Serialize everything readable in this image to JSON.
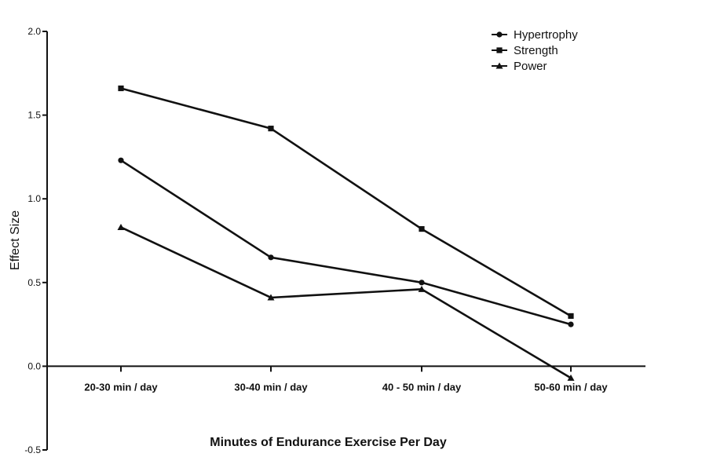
{
  "chart_data": {
    "type": "line",
    "title": "",
    "xlabel": "Minutes of Endurance Exercise Per Day",
    "ylabel": "Effect Size",
    "categories": [
      "20-30 min / day",
      "30-40 min / day",
      "40 - 50 min / day",
      "50-60 min / day"
    ],
    "ylim": [
      -0.5,
      2.0
    ],
    "yticks": [
      "-0.5",
      "0.0",
      "0.5",
      "1.0",
      "1.5",
      "2.0"
    ],
    "grid": false,
    "legend_position": "top-right",
    "series": [
      {
        "name": "Hypertrophy",
        "marker": "circle",
        "values": [
          1.23,
          0.65,
          0.5,
          0.25
        ]
      },
      {
        "name": "Strength",
        "marker": "square",
        "values": [
          1.66,
          1.42,
          0.82,
          0.3
        ]
      },
      {
        "name": "Power",
        "marker": "triangle",
        "values": [
          0.83,
          0.41,
          0.46,
          -0.07
        ]
      }
    ],
    "colors": {
      "line": "#111111"
    }
  }
}
